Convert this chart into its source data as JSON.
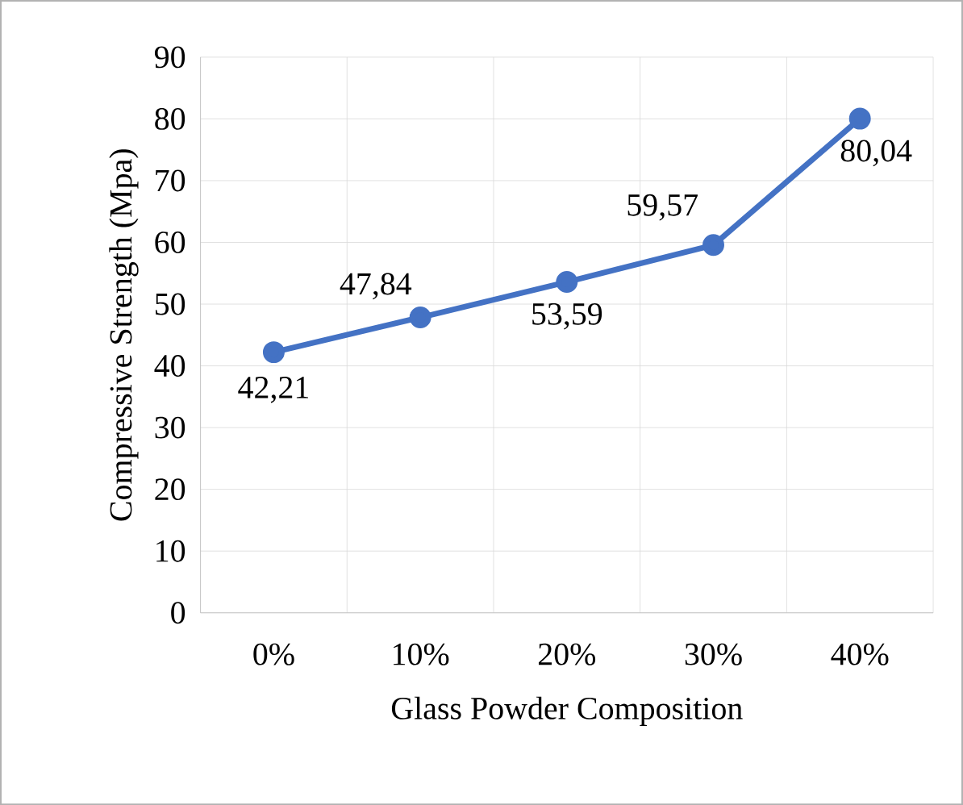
{
  "chart_data": {
    "type": "line",
    "xlabel": "Glass Powder Composition",
    "ylabel": "Compressive Strength (Mpa)",
    "categories": [
      "0%",
      "10%",
      "20%",
      "30%",
      "40%"
    ],
    "series": [
      {
        "color": "#4472c4",
        "values": [
          42.21,
          47.84,
          53.59,
          59.57,
          80.04
        ],
        "value_labels": [
          "42,21",
          "47,84",
          "53,59",
          "59,57",
          "80,04"
        ]
      }
    ],
    "ylim": [
      0,
      90
    ],
    "yticks": [
      0,
      10,
      20,
      30,
      40,
      50,
      60,
      70,
      80,
      90
    ],
    "grid": true,
    "marker": "circle",
    "line_style": "solid"
  }
}
